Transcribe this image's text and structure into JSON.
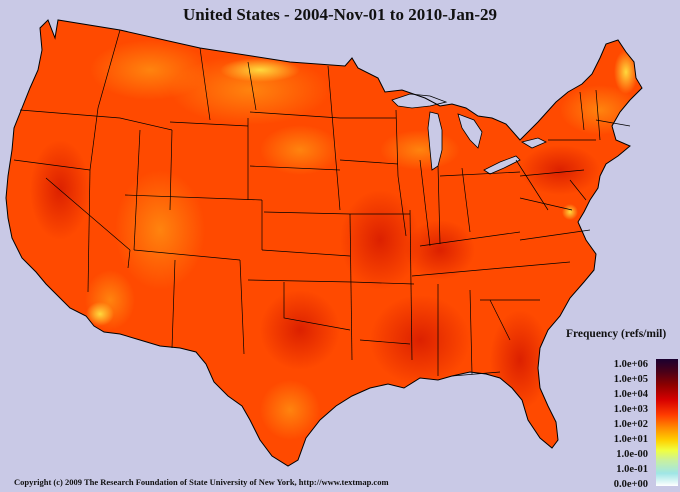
{
  "title": "United States - 2004-Nov-01 to 2010-Jan-29",
  "legend": {
    "title": "Frequency (refs/mil)",
    "labels": [
      "1.0e+06",
      "1.0e+05",
      "1.0e+04",
      "1.0e+03",
      "1.0e+02",
      "1.0e+01",
      "1.0e-00",
      "1.0e-01",
      "0.0e+00"
    ]
  },
  "copyright": "Copyright (c) 2009 The Research Foundation of State University of New York, http://www.textmap.com",
  "colors": {
    "background": "#c9c9e6",
    "land_base": "#ff4a00",
    "land_hot": "#e02800",
    "land_warm": "#ff7a10",
    "land_light": "#ffd040",
    "border": "#000000",
    "water": "#c9c9e6"
  }
}
